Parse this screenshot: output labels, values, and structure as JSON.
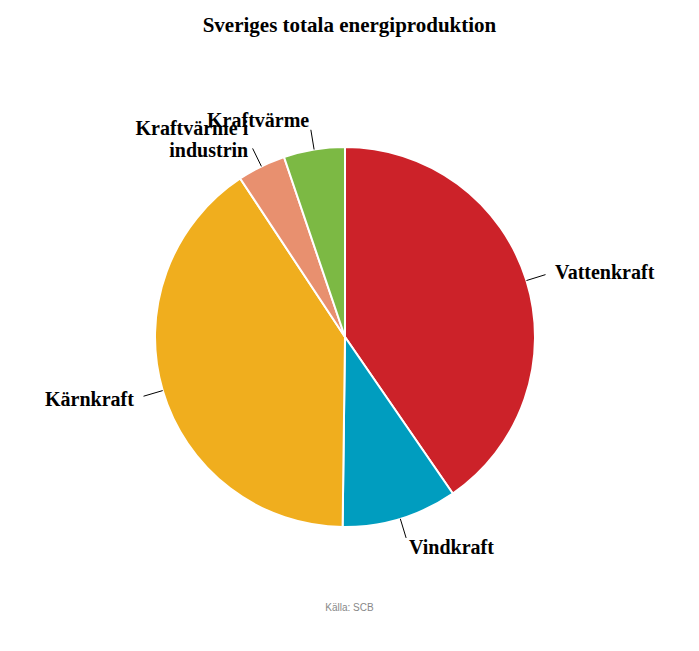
{
  "chart_data": {
    "type": "pie",
    "title": "Sveriges totala energiproduktion",
    "source": "Källa: SCB",
    "categories": [
      "Vattenkraft",
      "Vindkraft",
      "Kärnkraft",
      "Kraftvärme i industrin",
      "Kraftvärme"
    ],
    "values": [
      40.4,
      9.8,
      40.5,
      4.1,
      5.2
    ],
    "colors": [
      "#cc2229",
      "#009dbf",
      "#f0ae1e",
      "#e8906f",
      "#7cb944"
    ]
  }
}
